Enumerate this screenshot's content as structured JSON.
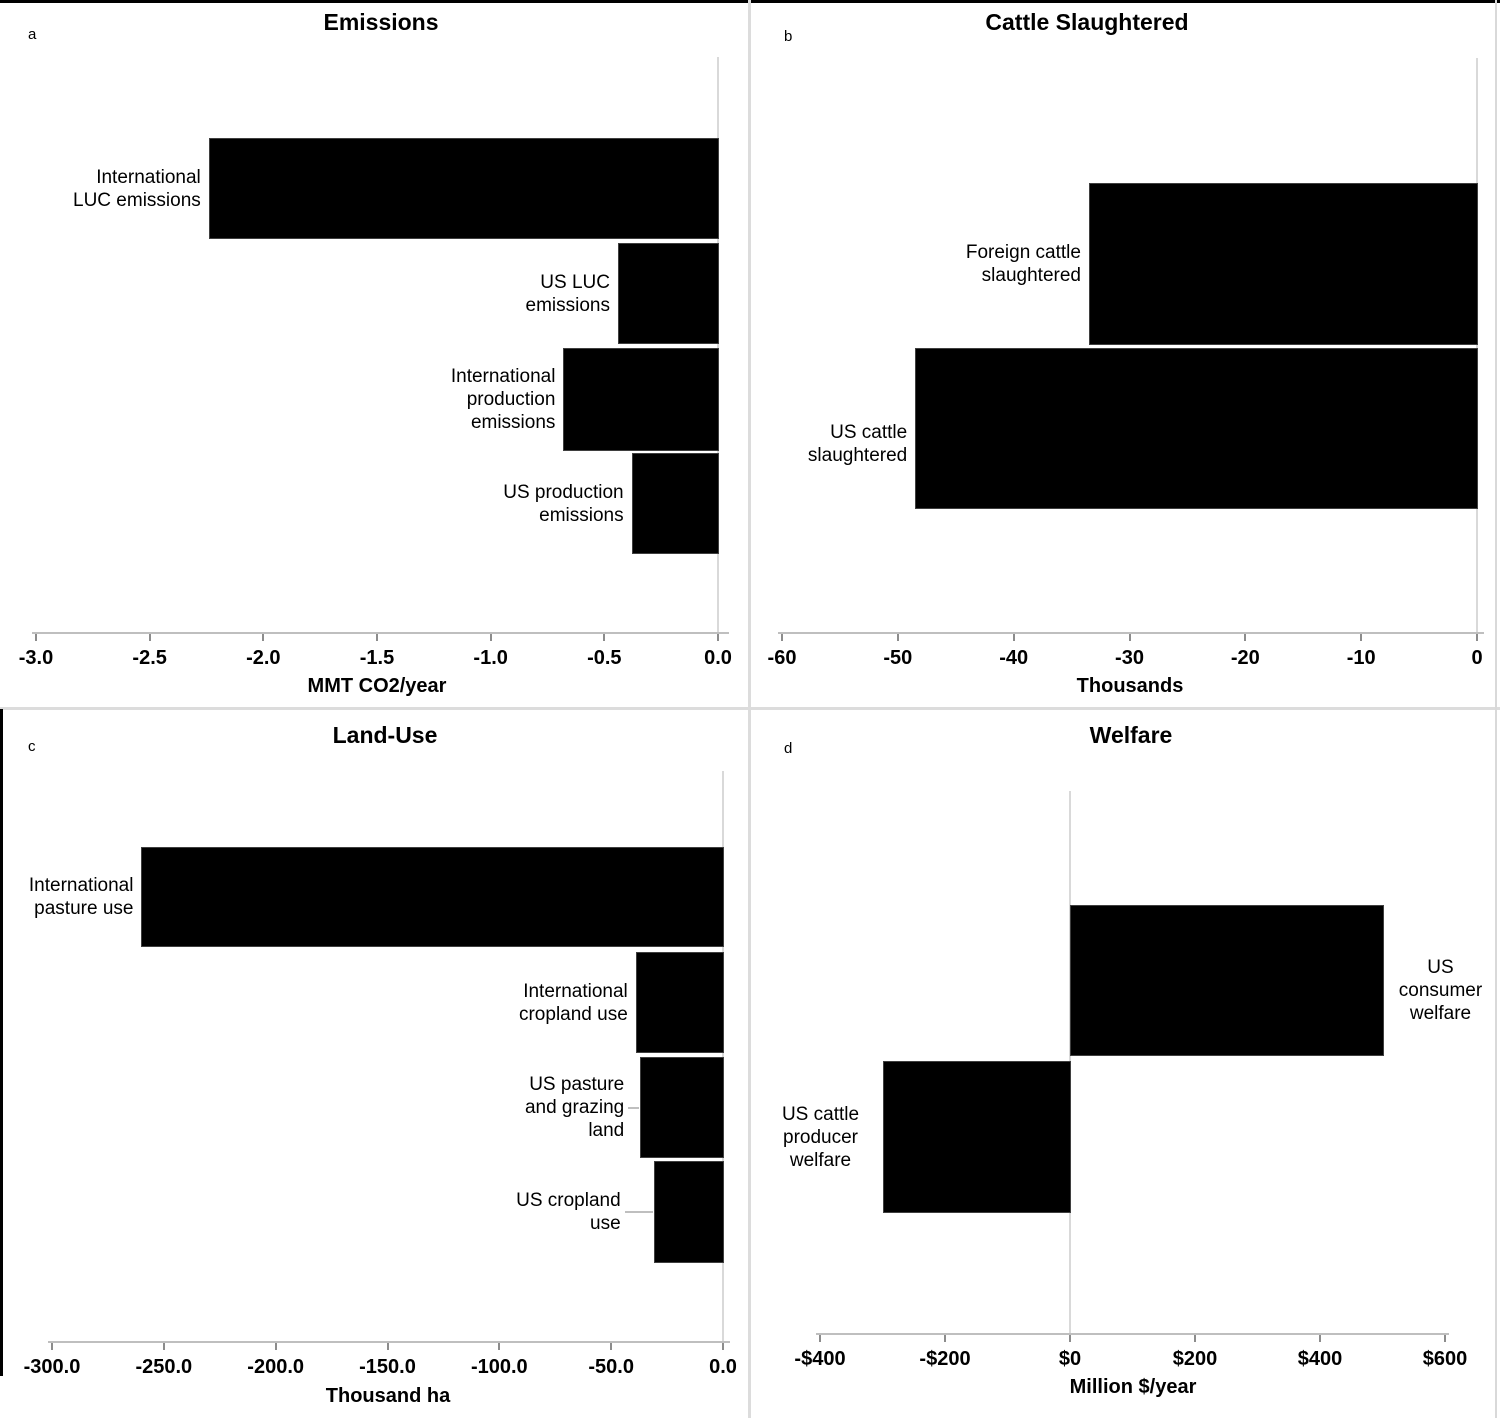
{
  "figure_colors": {
    "bar_fill": "#000000",
    "axis_line": "#bfbfbf",
    "zero_line": "#d9d9d9",
    "separator": "#dcdcdc",
    "border": "#000000"
  },
  "chart_data": [
    {
      "panel": "a",
      "type": "bar",
      "orientation": "horizontal",
      "title": "Emissions",
      "xlabel": "MMT CO2/year",
      "xlim": [
        -3.0,
        0.0
      ],
      "grid": false,
      "x_ticks": [
        {
          "v": -3.0,
          "label": "-3.0"
        },
        {
          "v": -2.5,
          "label": "-2.5"
        },
        {
          "v": -2.0,
          "label": "-2.0"
        },
        {
          "v": -1.5,
          "label": "-1.5"
        },
        {
          "v": -1.0,
          "label": "-1.0"
        },
        {
          "v": -0.5,
          "label": "-0.5"
        },
        {
          "v": 0.0,
          "label": "0.0"
        }
      ],
      "categories": [
        {
          "label": "International LUC emissions",
          "lines": [
            "International",
            "LUC emissions"
          ],
          "value": -2.24
        },
        {
          "label": "US LUC emissions",
          "lines": [
            "US LUC",
            "emissions"
          ],
          "value": -0.44
        },
        {
          "label": "International production emissions",
          "lines": [
            "International",
            "production",
            "emissions"
          ],
          "value": -0.68
        },
        {
          "label": "US production emissions",
          "lines": [
            "US production",
            "emissions"
          ],
          "value": -0.38
        }
      ]
    },
    {
      "panel": "b",
      "type": "bar",
      "orientation": "horizontal",
      "title": "Cattle Slaughtered",
      "xlabel": "Thousands",
      "xlim": [
        -60,
        0
      ],
      "grid": false,
      "x_ticks": [
        {
          "v": -60,
          "label": "-60"
        },
        {
          "v": -50,
          "label": "-50"
        },
        {
          "v": -40,
          "label": "-40"
        },
        {
          "v": -30,
          "label": "-30"
        },
        {
          "v": -20,
          "label": "-20"
        },
        {
          "v": -10,
          "label": "-10"
        },
        {
          "v": 0,
          "label": "0"
        }
      ],
      "categories": [
        {
          "label": "Foreign cattle slaughtered",
          "lines": [
            "Foreign cattle",
            "slaughtered"
          ],
          "value": -33.5
        },
        {
          "label": "US cattle slaughtered",
          "lines": [
            "US cattle",
            "slaughtered"
          ],
          "value": -48.5
        }
      ]
    },
    {
      "panel": "c",
      "type": "bar",
      "orientation": "horizontal",
      "title": "Land-Use",
      "xlabel": "Thousand ha",
      "xlim": [
        -300.0,
        0.0
      ],
      "grid": false,
      "x_ticks": [
        {
          "v": -300,
          "label": "-300.0"
        },
        {
          "v": -250,
          "label": "-250.0"
        },
        {
          "v": -200,
          "label": "-200.0"
        },
        {
          "v": -150,
          "label": "-150.0"
        },
        {
          "v": -100,
          "label": "-100.0"
        },
        {
          "v": -50,
          "label": "-50.0"
        },
        {
          "v": 0,
          "label": "0.0"
        }
      ],
      "categories": [
        {
          "label": "International pasture use",
          "lines": [
            "International",
            "pasture use"
          ],
          "value": -260
        },
        {
          "label": "International cropland use",
          "lines": [
            "International",
            "cropland use"
          ],
          "value": -39
        },
        {
          "label": "US pasture and grazing land",
          "lines": [
            "US pasture",
            "and grazing",
            "land"
          ],
          "value": -37
        },
        {
          "label": "US cropland use",
          "lines": [
            "US cropland",
            "use"
          ],
          "value": -31
        }
      ]
    },
    {
      "panel": "d",
      "type": "bar",
      "orientation": "horizontal",
      "title": "Welfare",
      "xlabel": "Million $/year",
      "xlim": [
        -400,
        600
      ],
      "grid": false,
      "x_ticks": [
        {
          "v": -400,
          "label": "-$400"
        },
        {
          "v": -200,
          "label": "-$200"
        },
        {
          "v": 0,
          "label": "$0"
        },
        {
          "v": 200,
          "label": "$200"
        },
        {
          "v": 400,
          "label": "$400"
        },
        {
          "v": 600,
          "label": "$600"
        }
      ],
      "categories": [
        {
          "label": "US consumer welfare",
          "lines": [
            "US",
            "consumer",
            "welfare"
          ],
          "value": 500
        },
        {
          "label": "US cattle producer welfare",
          "lines": [
            "US cattle",
            "producer",
            "welfare"
          ],
          "value": -300
        }
      ]
    }
  ]
}
